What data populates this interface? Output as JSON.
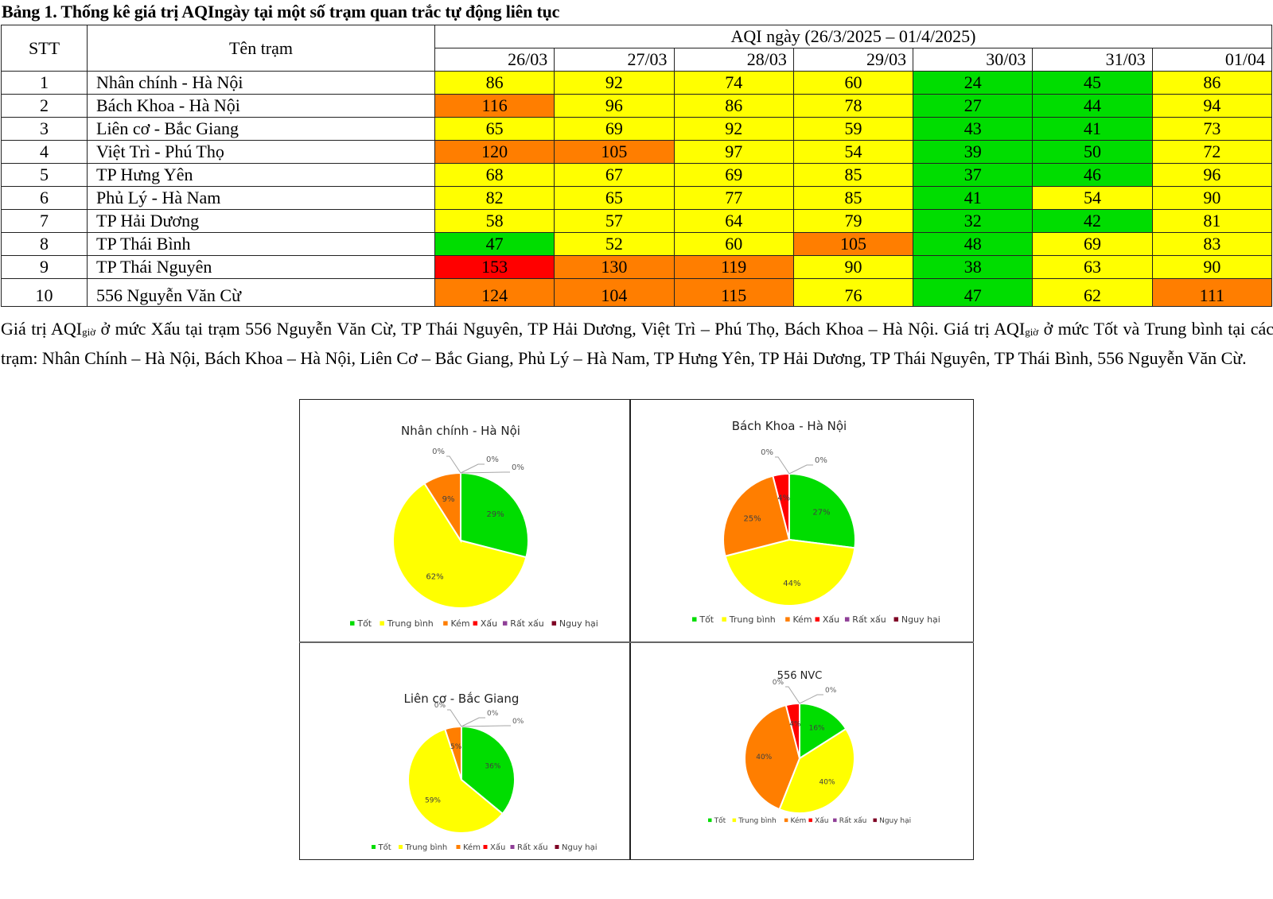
{
  "caption": "Bảng 1. Thống kê giá trị AQIngày tại một số trạm quan trắc tự động liên tục",
  "table": {
    "col_stt": "STT",
    "col_name": "Tên trạm",
    "group_header": "AQI ngày (26/3/2025 – 01/4/2025)",
    "dates": [
      "26/03",
      "27/03",
      "28/03",
      "29/03",
      "30/03",
      "31/03",
      "01/04"
    ],
    "rows": [
      {
        "stt": "1",
        "name": "Nhân chính - Hà Nội",
        "values": [
          86,
          92,
          74,
          60,
          24,
          45,
          86
        ]
      },
      {
        "stt": "2",
        "name": "Bách Khoa - Hà Nội",
        "values": [
          116,
          96,
          86,
          78,
          27,
          44,
          94
        ]
      },
      {
        "stt": "3",
        "name": "Liên cơ - Bắc Giang",
        "values": [
          65,
          69,
          92,
          59,
          43,
          41,
          73
        ]
      },
      {
        "stt": "4",
        "name": "Việt Trì - Phú Thọ",
        "values": [
          120,
          105,
          97,
          54,
          39,
          50,
          72
        ]
      },
      {
        "stt": "5",
        "name": "TP Hưng Yên",
        "values": [
          68,
          67,
          69,
          85,
          37,
          46,
          96
        ]
      },
      {
        "stt": "6",
        "name": "Phủ Lý - Hà Nam",
        "values": [
          82,
          65,
          77,
          85,
          41,
          54,
          90
        ]
      },
      {
        "stt": "7",
        "name": "TP Hải Dương",
        "values": [
          58,
          57,
          64,
          79,
          32,
          42,
          81
        ]
      },
      {
        "stt": "8",
        "name": "TP Thái Bình",
        "values": [
          47,
          52,
          60,
          105,
          48,
          69,
          83
        ]
      },
      {
        "stt": "9",
        "name": "TP Thái Nguyên",
        "values": [
          153,
          130,
          119,
          90,
          38,
          63,
          90
        ]
      },
      {
        "stt": "10",
        "name": "556 Nguyễn Văn Cừ",
        "values": [
          124,
          104,
          115,
          76,
          47,
          62,
          111
        ]
      }
    ]
  },
  "level_colors": {
    "tot": "#00dd00",
    "trung_binh": "#ffff00",
    "kem": "#ff7e00",
    "xau": "#ff0000",
    "rat_xau": "#8f3f97",
    "nguy_hai": "#7e0023"
  },
  "paragraph": {
    "p1_a": "Giá trị AQI",
    "sub": "giờ",
    "p1_b": " ở mức Xấu tại trạm 556 Nguyễn Văn Cừ, TP Thái Nguyên, TP Hải Dương, Việt Trì – Phú Thọ, Bách Khoa – Hà Nội. Giá trị AQI",
    "p1_c": " ở mức Tốt và Trung bình tại các trạm: Nhân Chính – Hà Nội, Bách Khoa – Hà Nội, Liên Cơ – Bắc Giang, Phủ Lý – Hà Nam, TP Hưng Yên, TP Hải Dương, TP Thái Nguyên, TP Thái Bình, 556 Nguyễn Văn Cừ."
  },
  "chart_data": [
    {
      "type": "pie",
      "title": "Nhân chính - Hà Nội",
      "categories": [
        "Tốt",
        "Trung bình",
        "Kém",
        "Xấu",
        "Rất xấu",
        "Nguy hại"
      ],
      "values": [
        29,
        62,
        9,
        0,
        0,
        0
      ],
      "labels": [
        "29%",
        "62%",
        "9%",
        "0%",
        "0%",
        "0%"
      ],
      "legend": "bottom"
    },
    {
      "type": "pie",
      "title": "Bách Khoa - Hà Nội",
      "categories": [
        "Tốt",
        "Trung bình",
        "Kém",
        "Xấu",
        "Rất xấu",
        "Nguy hại"
      ],
      "values": [
        27,
        44,
        25,
        4,
        0,
        0
      ],
      "labels": [
        "27%",
        "44%",
        "25%",
        "4%",
        "0%",
        "0%"
      ],
      "legend": "bottom"
    },
    {
      "type": "pie",
      "title": "Liên cơ - Bắc Giang",
      "categories": [
        "Tốt",
        "Trung bình",
        "Kém",
        "Xấu",
        "Rất xấu",
        "Nguy hại"
      ],
      "values": [
        36,
        59,
        5,
        0,
        0,
        0
      ],
      "labels": [
        "36%",
        "59%",
        "5%",
        "0%",
        "0%",
        "0%"
      ],
      "legend": "bottom"
    },
    {
      "type": "pie",
      "title": "556 NVC",
      "categories": [
        "Tốt",
        "Trung bình",
        "Kém",
        "Xấu",
        "Rất xấu",
        "Nguy hại"
      ],
      "values": [
        16,
        40,
        40,
        4,
        0,
        0
      ],
      "labels": [
        "16%",
        "40%",
        "40%",
        "4%",
        "0%",
        "0%"
      ],
      "legend": "bottom"
    }
  ]
}
